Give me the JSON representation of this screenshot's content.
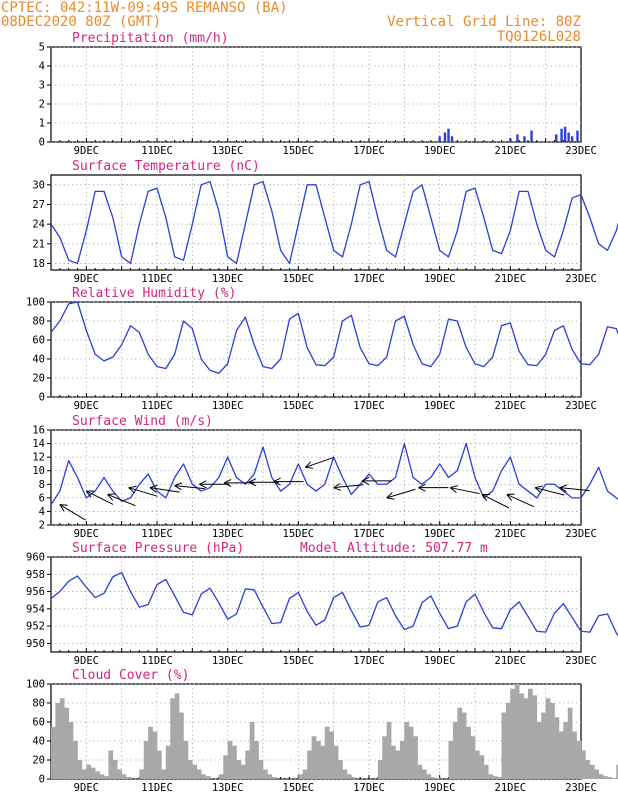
{
  "header": {
    "line1": "CPTEC:   042:11W-09:49S   REMANSO (BA)",
    "line2": "08DEC2020 80Z (GMT)",
    "right1": "Vertical Grid Line: 80Z",
    "right2": "TQ0126L028"
  },
  "colors": {
    "header": "#e98b2e",
    "title": "#d4267e",
    "line": "#2a3fd6",
    "cloud": "#a8a8a8",
    "grid": "#9a9a9a"
  },
  "x_ticks": [
    "9DEC",
    "11DEC",
    "13DEC",
    "15DEC",
    "17DEC",
    "19DEC",
    "21DEC",
    "23DEC"
  ],
  "chart_data": [
    {
      "type": "bar",
      "title": "Precipitation (mm/h)",
      "ylim": [
        0,
        5
      ],
      "yticks": [
        0,
        1,
        2,
        3,
        4,
        5
      ],
      "x_days": [
        19.0,
        19.15,
        19.25,
        19.35,
        21.0,
        21.2,
        21.4,
        21.6,
        22.3,
        22.45,
        22.55,
        22.65,
        22.75,
        22.9
      ],
      "values": [
        0.3,
        0.5,
        0.7,
        0.3,
        0.2,
        0.4,
        0.3,
        0.6,
        0.4,
        0.7,
        0.8,
        0.5,
        0.3,
        0.6
      ]
    },
    {
      "type": "line",
      "title": "Surface Temperature (nC)",
      "ylim": [
        17,
        31.5
      ],
      "yticks": [
        18,
        21,
        24,
        27,
        30
      ],
      "x_start_day": 8.0,
      "x_step_days": 0.25,
      "values": [
        24,
        22,
        18.5,
        18,
        23,
        29,
        29,
        25,
        19,
        18,
        24,
        29,
        29.5,
        25,
        19,
        18.5,
        24,
        30,
        30.5,
        26,
        19,
        18,
        24,
        30,
        30.5,
        26,
        20,
        18,
        24,
        30,
        30,
        25,
        20,
        19,
        24,
        30,
        30.5,
        25,
        20,
        19,
        24,
        29,
        30,
        25,
        20,
        19,
        23,
        29,
        29.5,
        25,
        20,
        19.5,
        23,
        29,
        29,
        24,
        20,
        19,
        23,
        28,
        28.5,
        25,
        21,
        20,
        23,
        28,
        28.5,
        24,
        20,
        19,
        23,
        28.5,
        28.5,
        24,
        20,
        19,
        22,
        27,
        28,
        25,
        22,
        20,
        23,
        28,
        28,
        24,
        20,
        19,
        23,
        28,
        29,
        24,
        21,
        20,
        24,
        28.5,
        28,
        24
      ]
    },
    {
      "type": "line",
      "title": "Relative Humidity (%)",
      "ylim": [
        0,
        100
      ],
      "yticks": [
        0,
        20,
        40,
        60,
        80,
        100
      ],
      "x_start_day": 8.0,
      "x_step_days": 0.25,
      "values": [
        68,
        80,
        98,
        100,
        70,
        45,
        38,
        42,
        55,
        75,
        68,
        45,
        32,
        30,
        45,
        80,
        72,
        40,
        28,
        25,
        35,
        70,
        84,
        55,
        32,
        30,
        40,
        82,
        88,
        52,
        34,
        33,
        42,
        80,
        86,
        52,
        35,
        33,
        42,
        80,
        85,
        55,
        35,
        32,
        45,
        82,
        80,
        52,
        35,
        32,
        42,
        75,
        78,
        48,
        34,
        33,
        45,
        70,
        75,
        50,
        35,
        34,
        45,
        74,
        72,
        45,
        35,
        34,
        45,
        78,
        75,
        45,
        38,
        38,
        50,
        70,
        72,
        50,
        40,
        40,
        52,
        75,
        70,
        48,
        42,
        44,
        58,
        78,
        85,
        62,
        46,
        50,
        62,
        85,
        88,
        60,
        45,
        76
      ]
    },
    {
      "type": "line",
      "title": "Surface Wind (m/s)",
      "ylim": [
        2,
        16
      ],
      "yticks": [
        2,
        4,
        6,
        8,
        10,
        12,
        14,
        16
      ],
      "x_start_day": 8.0,
      "x_step_days": 0.25,
      "values": [
        5,
        7,
        11.5,
        9,
        6,
        7,
        9,
        7,
        5.5,
        6,
        8,
        9.5,
        7,
        6,
        9,
        11,
        8,
        7,
        7.5,
        9,
        12,
        9,
        8,
        9.5,
        13.5,
        9,
        7,
        8,
        11,
        8,
        7,
        8,
        12,
        9,
        6.5,
        8,
        9.5,
        8,
        8,
        9,
        14,
        9,
        8,
        9,
        11,
        9,
        10,
        14,
        9,
        6,
        7,
        10,
        12,
        8,
        7,
        6,
        8,
        8,
        7,
        6,
        6,
        8,
        10.5,
        7,
        6,
        5,
        4.5,
        6,
        9.5,
        7,
        5,
        4.5,
        5,
        6.5,
        7,
        5,
        4,
        3,
        5,
        7,
        9,
        7,
        7,
        8,
        10,
        8,
        6,
        8,
        10,
        8,
        8,
        7,
        8,
        9,
        10,
        8,
        7,
        7.5
      ],
      "arrows": [
        {
          "day": 8.25,
          "speed": 5,
          "dx": 1,
          "dy": -0.6
        },
        {
          "day": 9.0,
          "speed": 7,
          "dx": 1,
          "dy": -0.5
        },
        {
          "day": 9.6,
          "speed": 6.5,
          "dx": 1,
          "dy": -0.4
        },
        {
          "day": 10.2,
          "speed": 7.5,
          "dx": 1,
          "dy": -0.3
        },
        {
          "day": 10.8,
          "speed": 7.5,
          "dx": 1,
          "dy": -0.15
        },
        {
          "day": 11.5,
          "speed": 7.8,
          "dx": 1,
          "dy": -0.1
        },
        {
          "day": 12.2,
          "speed": 8,
          "dx": 1,
          "dy": 0
        },
        {
          "day": 12.9,
          "speed": 8.2,
          "dx": 1,
          "dy": 0
        },
        {
          "day": 13.6,
          "speed": 8.3,
          "dx": 1,
          "dy": 0
        },
        {
          "day": 14.3,
          "speed": 8.4,
          "dx": 1,
          "dy": 0
        },
        {
          "day": 15.2,
          "speed": 10.5,
          "dx": 1,
          "dy": 0.35
        },
        {
          "day": 16.0,
          "speed": 7.5,
          "dx": 1,
          "dy": 0.1
        },
        {
          "day": 16.8,
          "speed": 8.5,
          "dx": 1,
          "dy": 0
        },
        {
          "day": 17.5,
          "speed": 6,
          "dx": 1,
          "dy": 0.3
        },
        {
          "day": 18.4,
          "speed": 7.5,
          "dx": 1,
          "dy": 0
        },
        {
          "day": 19.3,
          "speed": 7.5,
          "dx": 1,
          "dy": -0.2
        },
        {
          "day": 20.2,
          "speed": 6.5,
          "dx": 1,
          "dy": -0.5
        },
        {
          "day": 20.9,
          "speed": 6.5,
          "dx": 1,
          "dy": -0.45
        },
        {
          "day": 21.7,
          "speed": 7.5,
          "dx": 1,
          "dy": -0.25
        },
        {
          "day": 22.4,
          "speed": 7.5,
          "dx": 1,
          "dy": -0.1
        }
      ]
    },
    {
      "type": "line",
      "title": "Surface Pressure (hPa)",
      "annotation": "Model Altitude: 507.77 m",
      "ylim": [
        949,
        960
      ],
      "yticks": [
        950,
        952,
        954,
        956,
        958,
        960
      ],
      "x_start_day": 8.0,
      "x_step_days": 0.25,
      "values": [
        955.2,
        956,
        957.2,
        957.8,
        956.5,
        955.3,
        955.8,
        957.7,
        958.2,
        956,
        954.2,
        954.5,
        956.8,
        957.4,
        955.5,
        953.6,
        953.3,
        955.7,
        956.4,
        954.7,
        952.8,
        953.4,
        956.3,
        956.2,
        954.2,
        952.3,
        952.4,
        955.2,
        955.9,
        953.7,
        952.1,
        952.7,
        955.3,
        955.9,
        953.8,
        951.9,
        952.1,
        954.8,
        955.3,
        953.2,
        951.6,
        952,
        954.7,
        955.5,
        953.5,
        951.7,
        952,
        954.8,
        955.7,
        953.6,
        951.8,
        951.7,
        953.9,
        954.8,
        953.1,
        951.4,
        951.3,
        953.5,
        954.6,
        953,
        951.4,
        951.3,
        953.2,
        953.4,
        951.2,
        949.8,
        950.4,
        953.4,
        953.6,
        951.3,
        949.7,
        950.3,
        953.5,
        953.3,
        951,
        949.8,
        950.3,
        953.4,
        953.7,
        951.5,
        950,
        950,
        952.7,
        953.8,
        951.7,
        949.9,
        950.2,
        953.4,
        954.4,
        952.4,
        950.2,
        950.3,
        953,
        953.9,
        951.5,
        949.4,
        950.2,
        952.3
      ]
    },
    {
      "type": "area",
      "title": "Cloud Cover (%)",
      "ylim": [
        0,
        100
      ],
      "yticks": [
        0,
        20,
        40,
        60,
        80,
        100
      ],
      "x_start_day": 8.0,
      "x_step_days": 0.125,
      "values": [
        55,
        80,
        85,
        75,
        60,
        40,
        20,
        10,
        15,
        12,
        8,
        5,
        3,
        30,
        20,
        10,
        5,
        2,
        0,
        0,
        10,
        40,
        55,
        50,
        30,
        10,
        35,
        85,
        90,
        70,
        40,
        20,
        15,
        10,
        5,
        3,
        0,
        0,
        5,
        25,
        40,
        35,
        20,
        15,
        30,
        60,
        40,
        20,
        10,
        5,
        2,
        0,
        0,
        0,
        0,
        0,
        5,
        10,
        30,
        45,
        40,
        35,
        55,
        50,
        35,
        20,
        10,
        5,
        2,
        0,
        0,
        0,
        0,
        0,
        20,
        45,
        60,
        35,
        30,
        40,
        60,
        55,
        45,
        15,
        10,
        5,
        2,
        1,
        0,
        0,
        40,
        60,
        75,
        70,
        55,
        45,
        30,
        25,
        15,
        5,
        3,
        2,
        70,
        80,
        95,
        100,
        90,
        85,
        95,
        88,
        60,
        70,
        85,
        80,
        65,
        50,
        60,
        75,
        50,
        40,
        30,
        20,
        15,
        10,
        5,
        3,
        2,
        1,
        15,
        30,
        60,
        95,
        98,
        90,
        95,
        100,
        98,
        92,
        90,
        85,
        70,
        50,
        40,
        35,
        20,
        15,
        10,
        5,
        35,
        50,
        40,
        30,
        25,
        35,
        45,
        50,
        70,
        90,
        90,
        70,
        50,
        45,
        35,
        30,
        30,
        50,
        65,
        80,
        88,
        85,
        75,
        60,
        70,
        80,
        85,
        70,
        50,
        40,
        60,
        75,
        85,
        80,
        70,
        65,
        55,
        45,
        40,
        35,
        20,
        10,
        5,
        3,
        5,
        30,
        55,
        70,
        80,
        75,
        60,
        50,
        45,
        30,
        15,
        8,
        5,
        30,
        70,
        85,
        92,
        85,
        75,
        60,
        45,
        40,
        75,
        80,
        70,
        60,
        55,
        45,
        40,
        45,
        55,
        70,
        80,
        85,
        75,
        60,
        40,
        30,
        35,
        50,
        65,
        80,
        88,
        90,
        80,
        75,
        60,
        55,
        50,
        45,
        45,
        55,
        60,
        70,
        80,
        85,
        70,
        60,
        45,
        35,
        30,
        25,
        45,
        60,
        80,
        90,
        82,
        75,
        70,
        60,
        45,
        40,
        40,
        60,
        80,
        95,
        100,
        90,
        85,
        75,
        70,
        60,
        65,
        75,
        80,
        88,
        85,
        80,
        75,
        70,
        60,
        50,
        40,
        45,
        55,
        65,
        70,
        70,
        80,
        90,
        85,
        70,
        60,
        55,
        50,
        45,
        40,
        35,
        30,
        40,
        60,
        90,
        95,
        70,
        50,
        45
      ]
    }
  ]
}
